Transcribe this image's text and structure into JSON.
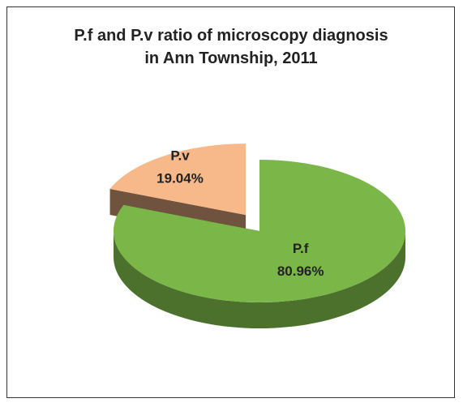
{
  "chart_data": {
    "type": "pie",
    "title": "P.f and P.v ratio of microscopy diagnosis in Ann Township, 2011",
    "categories": [
      "P.f",
      "P.v"
    ],
    "values": [
      80.96,
      19.04
    ],
    "value_labels": [
      "80.96%",
      "19.04%"
    ],
    "colors": [
      "#7ab648",
      "#f7b98a"
    ]
  }
}
